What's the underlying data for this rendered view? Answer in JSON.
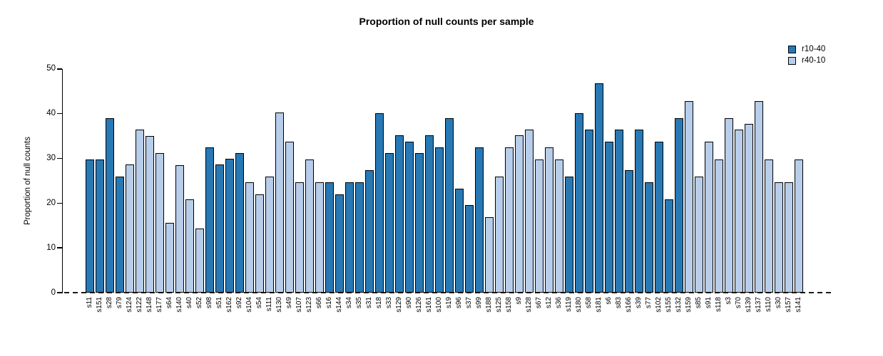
{
  "chart_data": {
    "type": "bar",
    "title": "Proportion of null counts per sample",
    "xlabel": "",
    "ylabel": "Proportion of null counts",
    "ylim": [
      0,
      50
    ],
    "yticks": [
      0,
      10,
      20,
      30,
      40,
      50
    ],
    "grid": false,
    "legend_position": "top-right",
    "legend": [
      {
        "label": "r10-40",
        "color": "#2878B4"
      },
      {
        "label": "r40-10",
        "color": "#B7CDE9"
      }
    ],
    "baseline_style": "dashed",
    "categories": [
      "s11",
      "s151",
      "s28",
      "s79",
      "s124",
      "s122",
      "s148",
      "s177",
      "s64",
      "s140",
      "s40",
      "s52",
      "s98",
      "s51",
      "s162",
      "s92",
      "s104",
      "s54",
      "s111",
      "s130",
      "s49",
      "s107",
      "s123",
      "s66",
      "s16",
      "s144",
      "s34",
      "s35",
      "s31",
      "s18",
      "s33",
      "s129",
      "s90",
      "s126",
      "s161",
      "s100",
      "s19",
      "s96",
      "s37",
      "s99",
      "s188",
      "s125",
      "s158",
      "s9",
      "s128",
      "s67",
      "s12",
      "s36",
      "s119",
      "s180",
      "s58",
      "s181",
      "s6",
      "s83",
      "s166",
      "s39",
      "s77",
      "s102",
      "s155",
      "s132",
      "s159",
      "s85",
      "s91",
      "s118",
      "s3",
      "s70",
      "s139",
      "s137",
      "s110",
      "s30",
      "s157",
      "s141"
    ],
    "values": [
      29.8,
      29.8,
      39.0,
      26.0,
      28.6,
      36.4,
      35.0,
      31.2,
      15.6,
      28.5,
      20.8,
      14.3,
      32.5,
      28.6,
      29.9,
      31.2,
      24.6,
      22.0,
      26.0,
      40.2,
      33.8,
      24.6,
      29.8,
      24.6,
      24.6,
      22.0,
      24.6,
      24.6,
      27.3,
      40.1,
      31.2,
      35.1,
      33.8,
      31.2,
      35.1,
      32.5,
      39.0,
      23.3,
      19.6,
      32.5,
      16.9,
      26.0,
      32.5,
      35.1,
      36.4,
      29.8,
      32.5,
      29.8,
      26.0,
      40.1,
      36.4,
      46.8,
      33.8,
      36.4,
      27.3,
      36.4,
      24.6,
      33.8,
      20.8,
      39.0,
      42.8,
      26.0,
      33.8,
      29.8,
      39.0,
      36.4,
      37.7,
      42.8,
      29.8,
      24.6,
      24.6,
      29.8
    ],
    "groups": [
      "r10-40",
      "r10-40",
      "r10-40",
      "r10-40",
      "r40-10",
      "r40-10",
      "r40-10",
      "r40-10",
      "r40-10",
      "r40-10",
      "r40-10",
      "r40-10",
      "r10-40",
      "r10-40",
      "r10-40",
      "r10-40",
      "r40-10",
      "r40-10",
      "r40-10",
      "r40-10",
      "r40-10",
      "r40-10",
      "r40-10",
      "r40-10",
      "r10-40",
      "r10-40",
      "r10-40",
      "r10-40",
      "r10-40",
      "r10-40",
      "r10-40",
      "r10-40",
      "r10-40",
      "r10-40",
      "r10-40",
      "r10-40",
      "r10-40",
      "r10-40",
      "r10-40",
      "r10-40",
      "r40-10",
      "r40-10",
      "r40-10",
      "r40-10",
      "r40-10",
      "r40-10",
      "r40-10",
      "r40-10",
      "r10-40",
      "r10-40",
      "r10-40",
      "r10-40",
      "r10-40",
      "r10-40",
      "r10-40",
      "r10-40",
      "r10-40",
      "r10-40",
      "r10-40",
      "r10-40",
      "r40-10",
      "r40-10",
      "r40-10",
      "r40-10",
      "r40-10",
      "r40-10",
      "r40-10",
      "r40-10",
      "r40-10",
      "r40-10",
      "r40-10",
      "r40-10"
    ]
  }
}
